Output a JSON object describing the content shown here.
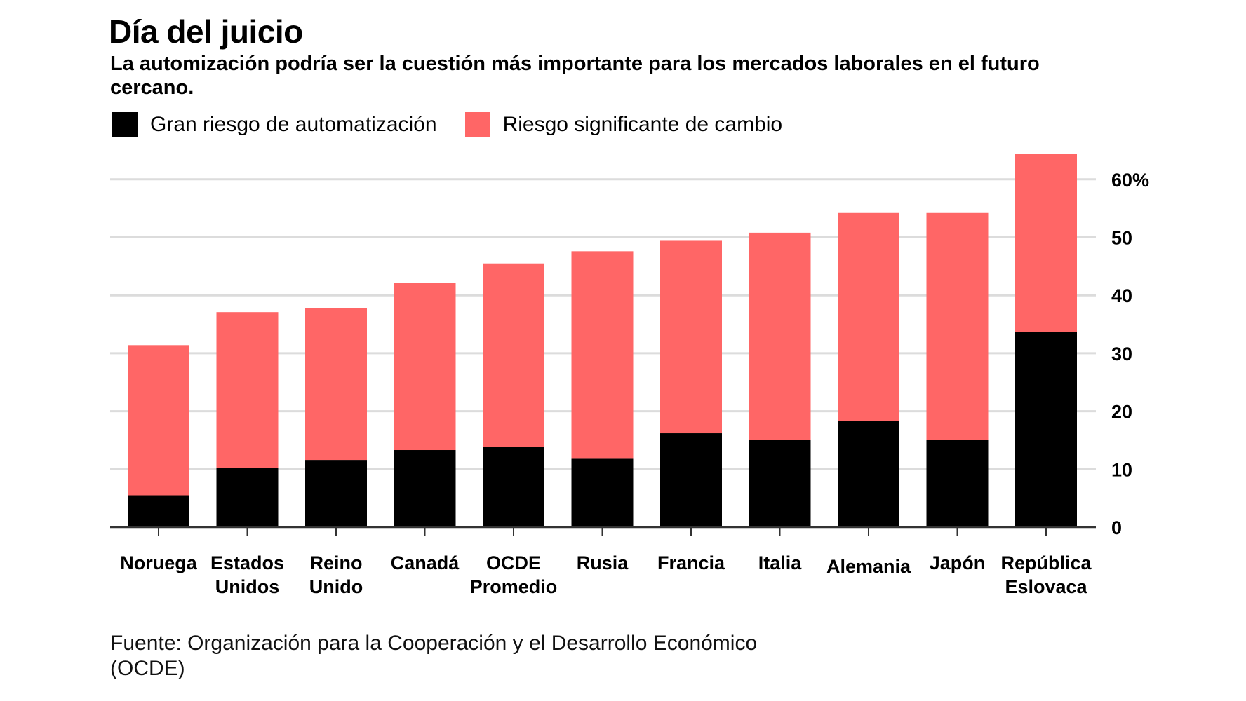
{
  "header": {
    "title": "Día del juicio",
    "subtitle": "La automización podría ser la cuestión más importante para los mercados laborales en el futuro cercano."
  },
  "legend": [
    {
      "label": "Gran riesgo de automatización",
      "color": "#000000"
    },
    {
      "label": "Riesgo significante de cambio",
      "color": "#FF6666"
    }
  ],
  "source": {
    "line1": "Fuente: Organización para la Cooperación y el Desarrollo Económico",
    "line2": "(OCDE)"
  },
  "chart_data": {
    "type": "bar",
    "stacked": true,
    "title": "Día del juicio",
    "subtitle": "La automización podría ser la cuestión más importante para los mercados laborales en el futuro cercano.",
    "xlabel": "",
    "ylabel": "",
    "ylim": [
      0,
      65
    ],
    "yticks": [
      0,
      10,
      20,
      30,
      40,
      50,
      60
    ],
    "ytick_labels": [
      "0",
      "10",
      "20",
      "30",
      "40",
      "50",
      "60%"
    ],
    "y_axis_position": "right",
    "grid": true,
    "legend_position": "top-left",
    "categories": [
      [
        "Noruega"
      ],
      [
        "Estados",
        "Unidos"
      ],
      [
        "Reino",
        "Unido"
      ],
      [
        "Canadá"
      ],
      [
        "OCDE",
        "Promedio"
      ],
      [
        "Rusia"
      ],
      [
        "Francia"
      ],
      [
        "Italia"
      ],
      [
        "Alemania"
      ],
      [
        "Japón"
      ],
      [
        "República",
        "Eslovaca"
      ]
    ],
    "series": [
      {
        "name": "Gran riesgo de automatización",
        "color": "#000000",
        "values": [
          5.5,
          10.2,
          11.6,
          13.3,
          13.9,
          11.8,
          16.2,
          15.1,
          18.3,
          15.1,
          33.7
        ]
      },
      {
        "name": "Riesgo significante de cambio",
        "color": "#FF6666",
        "values": [
          25.9,
          26.9,
          26.2,
          28.8,
          31.6,
          35.8,
          33.2,
          35.7,
          35.9,
          39.1,
          30.7
        ]
      }
    ],
    "totals": [
      31.4,
      37.1,
      37.8,
      42.1,
      45.5,
      47.6,
      49.4,
      50.8,
      54.2,
      54.2,
      64.4
    ]
  }
}
